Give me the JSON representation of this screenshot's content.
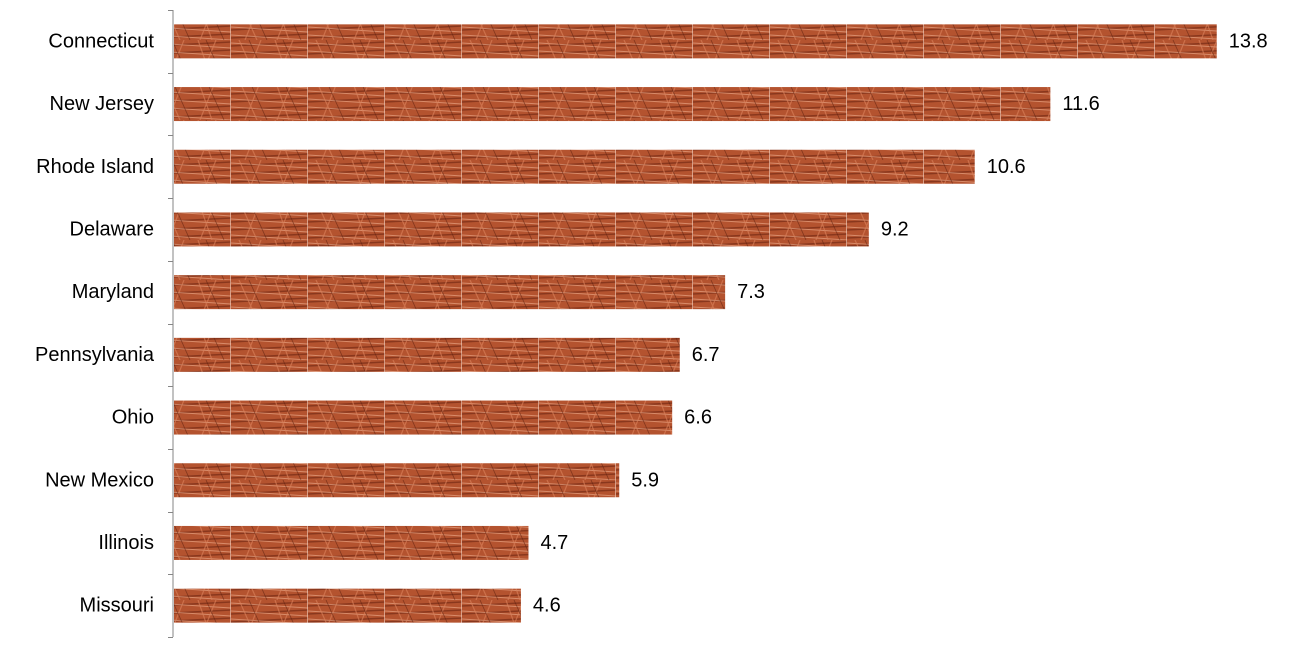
{
  "chart_data": {
    "type": "bar",
    "orientation": "horizontal",
    "categories": [
      "Connecticut",
      "New Jersey",
      "Rhode Island",
      "Delaware",
      "Maryland",
      "Pennsylvania",
      "Ohio",
      "New Mexico",
      "Illinois",
      "Missouri"
    ],
    "values": [
      13.8,
      11.6,
      10.6,
      9.2,
      7.3,
      6.7,
      6.6,
      5.9,
      4.7,
      4.6
    ],
    "xlim": [
      0,
      14.2
    ],
    "grid": false,
    "legend": "none",
    "data_labels": true,
    "bar_fill": "copper-wire texture",
    "colors": {
      "bar_base": "#b4532f",
      "bar_dark": "#7a2d16",
      "bar_light": "#e7a282",
      "axis": "#868686",
      "text": "#000000"
    }
  }
}
